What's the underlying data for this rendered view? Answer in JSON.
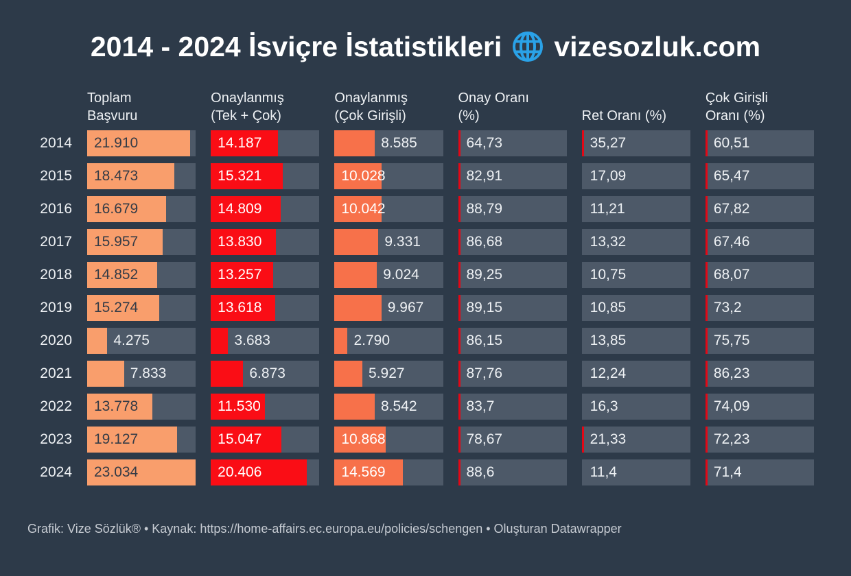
{
  "title": {
    "text_left": "2014 - 2024 İsviçre İstatistikleri",
    "site": "vizesozluk.com"
  },
  "footer": {
    "text": "Grafik: Vize Sözlük® • Kaynak: https://home-affairs.ec.europa.eu/policies/schengen • Oluşturan Datawrapper"
  },
  "colors": {
    "background": "#2d3a49",
    "track": "#4d5968",
    "bar_total": "#f99e6c",
    "bar_approved": "#fa0d15",
    "bar_multi": "#f7714a",
    "tick_red": "#e30715",
    "globe_blue": "#2aa2e8",
    "text_light": "#eef1f4",
    "footer_text": "#c7ccd3"
  },
  "chart_data": {
    "type": "table",
    "title": "2014 - 2024 İsviçre İstatistikleri — vizesozluk.com",
    "columns": [
      "Toplam\nBaşvuru",
      "Onaylanmış\n(Tek + Çok)",
      "Onaylanmış\n(Çok Girişli)",
      "Onay Oranı\n(%)",
      "Ret Oranı (%)",
      "Çok Girişli\nOranı (%)"
    ],
    "years": [
      "2014",
      "2015",
      "2016",
      "2017",
      "2018",
      "2019",
      "2020",
      "2021",
      "2022",
      "2023",
      "2024"
    ],
    "bar_scale_max": 23034,
    "label_inside_min": 10000,
    "tick_show_min": 20,
    "series": [
      {
        "name": "Toplam Başvuru",
        "render": "bar",
        "bar_color": "#f99e6c",
        "label_inside_color": "#343b46",
        "label_outside_color": "#eef1f4",
        "values": [
          21910,
          18473,
          16679,
          15957,
          14852,
          15274,
          4275,
          7833,
          13778,
          19127,
          23034
        ],
        "labels": [
          "21.910",
          "18.473",
          "16.679",
          "15.957",
          "14.852",
          "15.274",
          "4.275",
          "7.833",
          "13.778",
          "19.127",
          "23.034"
        ]
      },
      {
        "name": "Onaylanmış (Tek + Çok)",
        "render": "bar",
        "bar_color": "#fa0d15",
        "label_inside_color": "#ffffff",
        "label_outside_color": "#eef1f4",
        "values": [
          14187,
          15321,
          14809,
          13830,
          13257,
          13618,
          3683,
          6873,
          11530,
          15047,
          20406
        ],
        "labels": [
          "14.187",
          "15.321",
          "14.809",
          "13.830",
          "13.257",
          "13.618",
          "3.683",
          "6.873",
          "11.530",
          "15.047",
          "20.406"
        ]
      },
      {
        "name": "Onaylanmış (Çok Girişli)",
        "render": "bar",
        "bar_color": "#f7714a",
        "label_inside_color": "#ffffff",
        "label_outside_color": "#eef1f4",
        "values": [
          8585,
          10028,
          10042,
          9331,
          9024,
          9967,
          2790,
          5927,
          8542,
          10868,
          14569
        ],
        "labels": [
          "8.585",
          "10.028",
          "10.042",
          "9.331",
          "9.024",
          "9.967",
          "2.790",
          "5.927",
          "8.542",
          "10.868",
          "14.569"
        ]
      },
      {
        "name": "Onay Oranı (%)",
        "render": "percent",
        "values": [
          64.73,
          82.91,
          88.79,
          86.68,
          89.25,
          89.15,
          86.15,
          87.76,
          83.7,
          78.67,
          88.6
        ],
        "labels": [
          "64,73",
          "82,91",
          "88,79",
          "86,68",
          "89,25",
          "89,15",
          "86,15",
          "87,76",
          "83,7",
          "78,67",
          "88,6"
        ]
      },
      {
        "name": "Ret Oranı (%)",
        "render": "percent",
        "values": [
          35.27,
          17.09,
          11.21,
          13.32,
          10.75,
          10.85,
          13.85,
          12.24,
          16.3,
          21.33,
          11.4
        ],
        "labels": [
          "35,27",
          "17,09",
          "11,21",
          "13,32",
          "10,75",
          "10,85",
          "13,85",
          "12,24",
          "16,3",
          "21,33",
          "11,4"
        ]
      },
      {
        "name": "Çok Girişli Oranı (%)",
        "render": "percent",
        "values": [
          60.51,
          65.47,
          67.82,
          67.46,
          68.07,
          73.2,
          75.75,
          86.23,
          74.09,
          72.23,
          71.4
        ],
        "labels": [
          "60,51",
          "65,47",
          "67,82",
          "67,46",
          "68,07",
          "73,2",
          "75,75",
          "86,23",
          "74,09",
          "72,23",
          "71,4"
        ]
      }
    ]
  }
}
